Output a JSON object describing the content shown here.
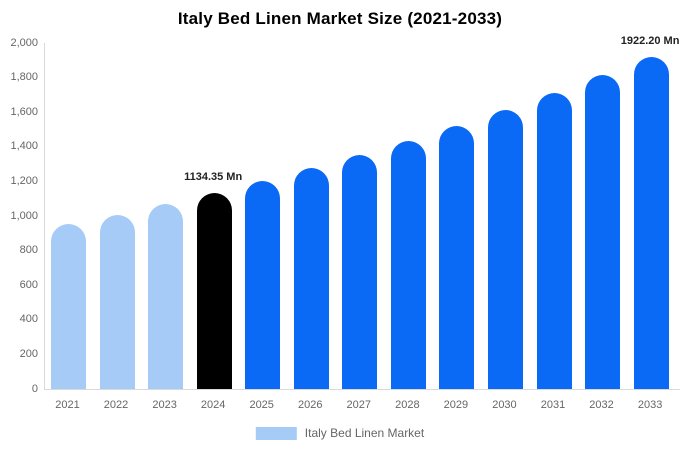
{
  "chart_data": {
    "type": "bar",
    "title": "Italy Bed Linen Market Size (2021-2033)",
    "categories": [
      "2021",
      "2022",
      "2023",
      "2024",
      "2025",
      "2026",
      "2027",
      "2028",
      "2029",
      "2030",
      "2031",
      "2032",
      "2033"
    ],
    "values": [
      951.3,
      1008.7,
      1069.7,
      1134.35,
      1202.9,
      1275.6,
      1352.7,
      1434.4,
      1521.1,
      1612.9,
      1710.3,
      1813.6,
      1922.2
    ],
    "labeled_points": [
      {
        "category": "2024",
        "label": "1134.35 Mn"
      },
      {
        "category": "2033",
        "label": "1922.20 Mn"
      }
    ],
    "xlabel": "",
    "ylabel": "",
    "ylim": [
      0,
      2000
    ],
    "ytick_interval": 200,
    "ytick_labels": [
      "0",
      "200",
      "400",
      "600",
      "800",
      "1,000",
      "1,200",
      "1,400",
      "1,600",
      "1,800",
      "2,000"
    ],
    "grid": false,
    "bar_colors": [
      "#a5cbf6",
      "#a5cbf6",
      "#a5cbf6",
      "#000000",
      "#0a69f5",
      "#0a69f5",
      "#0a69f5",
      "#0a69f5",
      "#0a69f5",
      "#0a69f5",
      "#0a69f5",
      "#0a69f5",
      "#0a69f5"
    ],
    "colors": {
      "historical_bar": "#a5cbf6",
      "highlight_bar": "#000000",
      "forecast_bar": "#0a69f5",
      "axis_line": "#d9d9d9",
      "tick_text": "#666666",
      "annotation_text": "#222222",
      "title_text": "#000000"
    },
    "legend": {
      "position": "bottom",
      "entries": [
        {
          "label": "Italy Bed Linen Market",
          "swatch_color": "#a5cbf6"
        }
      ]
    }
  }
}
